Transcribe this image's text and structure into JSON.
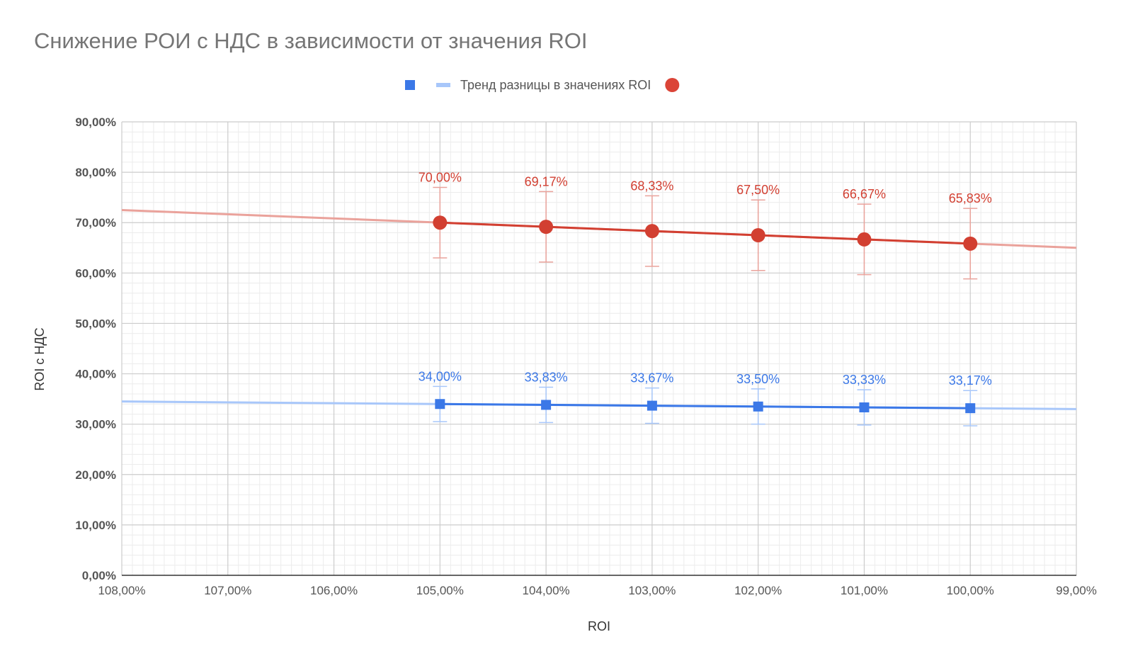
{
  "chart_data": {
    "type": "scatter",
    "title": "Снижение РОИ с НДС в зависимости от значения ROI",
    "xlabel": "ROI",
    "ylabel": "ROI с НДС",
    "xlim": [
      108,
      99
    ],
    "ylim": [
      0,
      90
    ],
    "x_reversed": true,
    "x_ticks": [
      "108,00%",
      "107,00%",
      "106,00%",
      "105,00%",
      "104,00%",
      "103,00%",
      "102,00%",
      "101,00%",
      "100,00%",
      "99,00%"
    ],
    "y_ticks": [
      "0,00%",
      "10,00%",
      "20,00%",
      "30,00%",
      "40,00%",
      "50,00%",
      "60,00%",
      "70,00%",
      "80,00%",
      "90,00%"
    ],
    "grid": true,
    "legend_position": "top",
    "legend": [
      {
        "label": "",
        "marker": "square",
        "color": "#3b78e7"
      },
      {
        "label": "Тренд разницы в значениях ROI",
        "marker": "line",
        "color": "#a8c7fa"
      },
      {
        "label": "",
        "marker": "circle",
        "color": "#db4437"
      }
    ],
    "series": [
      {
        "marker": "square",
        "color": "#3b78e7",
        "trend_color": "#a8c7fa",
        "x": [
          105,
          104,
          103,
          102,
          101,
          100
        ],
        "y": [
          34.0,
          33.83,
          33.67,
          33.5,
          33.33,
          33.17
        ],
        "labels": [
          "34,00%",
          "33,83%",
          "33,67%",
          "33,50%",
          "33,33%",
          "33,17%"
        ],
        "error": 3.5,
        "trend": {
          "x": [
            108,
            99
          ],
          "y": [
            34.5,
            33.0
          ]
        }
      },
      {
        "marker": "circle",
        "color": "#d23f31",
        "trend_color": "#eaa29b",
        "x": [
          105,
          104,
          103,
          102,
          101,
          100
        ],
        "y": [
          70.0,
          69.17,
          68.33,
          67.5,
          66.67,
          65.83
        ],
        "labels": [
          "70,00%",
          "69,17%",
          "68,33%",
          "67,50%",
          "66,67%",
          "65,83%"
        ],
        "error": 7.0,
        "trend": {
          "x": [
            108,
            99
          ],
          "y": [
            72.5,
            65.0
          ]
        }
      }
    ]
  }
}
